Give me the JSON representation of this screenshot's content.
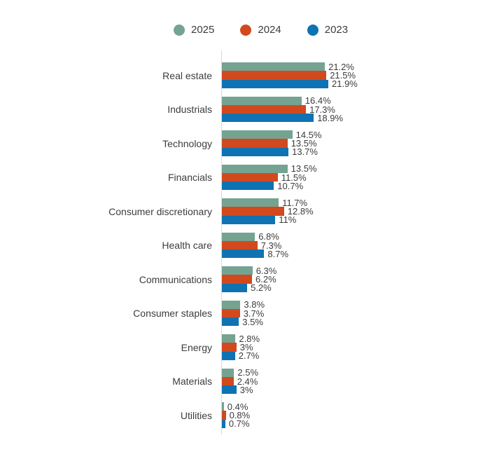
{
  "colors": {
    "series_2025": "#74a391",
    "series_2024": "#d2491e",
    "series_2023": "#0f72b2",
    "axis_line": "#d9d9d9",
    "text": "#3c3c3c",
    "background": "#ffffff"
  },
  "chart_data": {
    "type": "bar",
    "orientation": "horizontal",
    "title": "",
    "xlabel": "",
    "ylabel": "",
    "value_suffix": "%",
    "xlim": [
      0,
      22
    ],
    "grid": false,
    "legend_position": "top",
    "categories": [
      "Real estate",
      "Industrials",
      "Technology",
      "Financials",
      "Consumer discretionary",
      "Health care",
      "Communications",
      "Consumer staples",
      "Energy",
      "Materials",
      "Utilities"
    ],
    "series": [
      {
        "name": "2025",
        "color": "#74a391",
        "values": [
          21.2,
          16.4,
          14.5,
          13.5,
          11.7,
          6.8,
          6.3,
          3.8,
          2.8,
          2.5,
          0.4
        ],
        "labels": [
          "21.2%",
          "16.4%",
          "14.5%",
          "13.5%",
          "11.7%",
          "6.8%",
          "6.3%",
          "3.8%",
          "2.8%",
          "2.5%",
          "0.4%"
        ]
      },
      {
        "name": "2024",
        "color": "#d2491e",
        "values": [
          21.5,
          17.3,
          13.5,
          11.5,
          12.8,
          7.3,
          6.2,
          3.7,
          3,
          2.4,
          0.8
        ],
        "labels": [
          "21.5%",
          "17.3%",
          "13.5%",
          "11.5%",
          "12.8%",
          "7.3%",
          "6.2%",
          "3.7%",
          "3%",
          "2.4%",
          "0.8%"
        ]
      },
      {
        "name": "2023",
        "color": "#0f72b2",
        "values": [
          21.9,
          18.9,
          13.7,
          10.7,
          11,
          8.7,
          5.2,
          3.5,
          2.7,
          3,
          0.7
        ],
        "labels": [
          "21.9%",
          "18.9%",
          "13.7%",
          "10.7%",
          "11%",
          "8.7%",
          "5.2%",
          "3.5%",
          "2.7%",
          "3%",
          "0.7%"
        ]
      }
    ]
  }
}
